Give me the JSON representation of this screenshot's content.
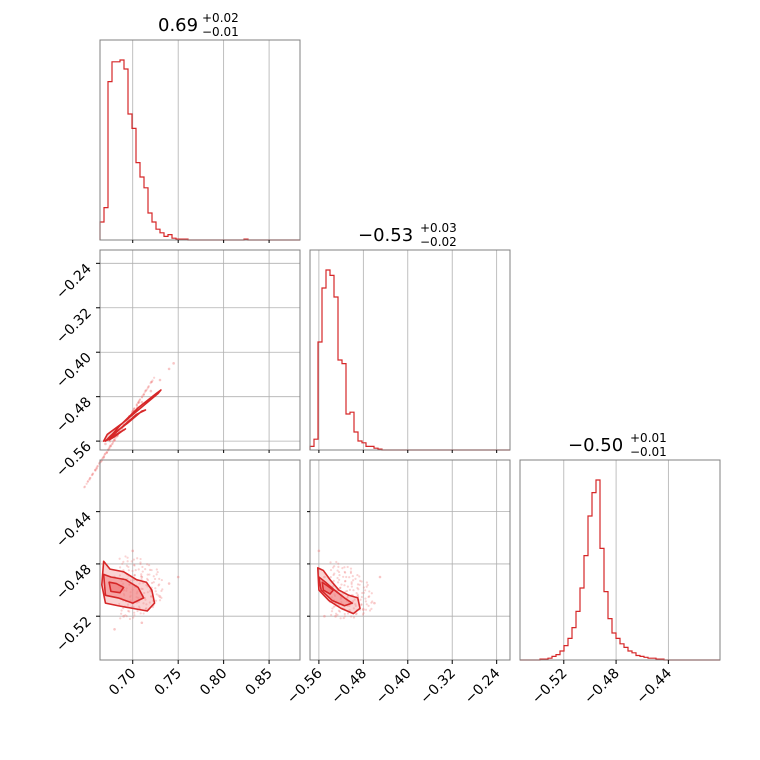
{
  "chart_data": {
    "type": "corner",
    "colors": {
      "line": "#d62728",
      "fill": "#f08080",
      "grid": "#b0b0b0",
      "frame": "#808080"
    },
    "grid": true,
    "params": [
      {
        "title": "0.69",
        "plus": "+0.02",
        "minus": "−0.01",
        "range": [
          0.664,
          0.884
        ],
        "ticks": [
          0.7,
          0.75,
          0.8,
          0.85
        ],
        "tick_labels": [
          "0.70",
          "0.75",
          "0.80",
          "0.85"
        ]
      },
      {
        "title": "−0.53",
        "plus": "+0.03",
        "minus": "−0.02",
        "range": [
          -0.576,
          -0.216
        ],
        "ticks": [
          -0.56,
          -0.48,
          -0.4,
          -0.32,
          -0.24
        ],
        "tick_labels": [
          "−0.56",
          "−0.48",
          "−0.40",
          "−0.32",
          "−0.24"
        ]
      },
      {
        "title": "−0.50",
        "plus": "+0.01",
        "minus": "−0.01",
        "range": [
          -0.5535,
          -0.4005
        ],
        "ticks": [
          -0.52,
          -0.48,
          -0.44
        ],
        "tick_labels": [
          "−0.52",
          "−0.48",
          "−0.44"
        ]
      }
    ],
    "diag_ticks": [
      [
        0.7,
        0.75,
        0.8,
        0.85
      ],
      [
        -0.56,
        -0.48,
        -0.4,
        -0.32,
        -0.24
      ],
      [
        -0.52,
        -0.48,
        -0.44
      ]
    ],
    "row_ticks": [
      {
        "row": 1,
        "ticks": [
          -0.56,
          -0.48,
          -0.4,
          -0.32,
          -0.24
        ],
        "tick_labels": [
          "−0.56",
          "−0.48",
          "−0.40",
          "−0.32",
          "−0.24"
        ]
      },
      {
        "row": 2,
        "ticks": [
          -0.52,
          -0.48,
          -0.44
        ],
        "tick_labels": [
          "−0.52",
          "−0.48",
          "−0.44"
        ]
      }
    ],
    "histograms": [
      {
        "bin_start": 0.664,
        "bin_width": 0.0044,
        "counts": [
          0.1,
          0.18,
          0.88,
          0.99,
          0.99,
          1.0,
          0.95,
          0.7,
          0.62,
          0.43,
          0.35,
          0.29,
          0.15,
          0.1,
          0.06,
          0.04,
          0.02,
          0.03,
          0.01,
          0.005,
          0.005,
          0.005,
          0.0,
          0.0,
          0.0,
          0.0,
          0.0,
          0.0,
          0.0,
          0.0,
          0.0,
          0.0,
          0.0,
          0.0,
          0.0,
          0.0,
          0.005,
          0.0,
          0.0,
          0.0,
          0.0,
          0.0,
          0.0,
          0.0,
          0.0,
          0.0,
          0.0,
          0.0,
          0.0,
          0.0
        ]
      },
      {
        "bin_start": -0.576,
        "bin_width": 0.0072,
        "counts": [
          0.02,
          0.06,
          0.6,
          0.9,
          1.0,
          0.97,
          0.85,
          0.5,
          0.48,
          0.2,
          0.21,
          0.1,
          0.05,
          0.04,
          0.02,
          0.02,
          0.01,
          0.005,
          0.0,
          0.0,
          0.0,
          0.0,
          0.0,
          0.0,
          0.0,
          0.0,
          0.0,
          0.0,
          0.0,
          0.0,
          0.0,
          0.0,
          0.0,
          0.0,
          0.0,
          0.0,
          0.0,
          0.0,
          0.0,
          0.0,
          0.0,
          0.0,
          0.0,
          0.0,
          0.0,
          0.0,
          0.0,
          0.0,
          0.0,
          0.0
        ]
      },
      {
        "bin_start": -0.5535,
        "bin_width": 0.00306,
        "counts": [
          0.0,
          0.0,
          0.0,
          0.0,
          0.0,
          0.005,
          0.005,
          0.01,
          0.02,
          0.03,
          0.05,
          0.08,
          0.12,
          0.18,
          0.27,
          0.4,
          0.58,
          0.8,
          0.93,
          1.0,
          0.62,
          0.38,
          0.23,
          0.15,
          0.12,
          0.09,
          0.07,
          0.05,
          0.04,
          0.025,
          0.02,
          0.015,
          0.01,
          0.01,
          0.005,
          0.005,
          0.0,
          0.0,
          0.0,
          0.0,
          0.0,
          0.0,
          0.0,
          0.0,
          0.0,
          0.0,
          0.0,
          0.0,
          0.0,
          0.0
        ]
      }
    ],
    "joints": [
      {
        "panel": "x1-vs-x0",
        "center": [
          0.685,
          -0.545
        ],
        "slope": 3.2,
        "spread_major": 0.018,
        "spread_minor": 0.008,
        "points": [
          [
            0.68,
            -0.55
          ],
          [
            0.69,
            -0.53
          ],
          [
            0.7,
            -0.51
          ],
          [
            0.71,
            -0.49
          ],
          [
            0.72,
            -0.47
          ],
          [
            0.73,
            -0.45
          ],
          [
            0.74,
            -0.43
          ],
          [
            0.745,
            -0.42
          ],
          [
            0.675,
            -0.56
          ],
          [
            0.67,
            -0.565
          ],
          [
            0.69,
            -0.54
          ],
          [
            0.705,
            -0.5
          ]
        ],
        "contours": [
          [
            [
              0.668,
              -0.56
            ],
            [
              0.672,
              -0.548
            ],
            [
              0.69,
              -0.526
            ],
            [
              0.712,
              -0.496
            ],
            [
              0.728,
              -0.474
            ],
            [
              0.731,
              -0.468
            ],
            [
              0.726,
              -0.474
            ],
            [
              0.706,
              -0.5
            ],
            [
              0.686,
              -0.532
            ],
            [
              0.672,
              -0.558
            ]
          ],
          [
            [
              0.67,
              -0.56
            ],
            [
              0.676,
              -0.55
            ],
            [
              0.694,
              -0.528
            ],
            [
              0.71,
              -0.506
            ],
            [
              0.714,
              -0.504
            ],
            [
              0.704,
              -0.512
            ],
            [
              0.686,
              -0.538
            ],
            [
              0.674,
              -0.556
            ]
          ],
          [
            [
              0.674,
              -0.558
            ],
            [
              0.682,
              -0.548
            ],
            [
              0.692,
              -0.538
            ],
            [
              0.69,
              -0.54
            ],
            [
              0.68,
              -0.552
            ]
          ]
        ]
      },
      {
        "panel": "x2-vs-x0",
        "center": [
          0.685,
          -0.498
        ],
        "points": [
          [
            0.68,
            -0.49
          ],
          [
            0.69,
            -0.5
          ],
          [
            0.7,
            -0.51
          ],
          [
            0.71,
            -0.49
          ],
          [
            0.72,
            -0.5
          ],
          [
            0.73,
            -0.505
          ],
          [
            0.74,
            -0.495
          ],
          [
            0.75,
            -0.49
          ],
          [
            0.7,
            -0.47
          ],
          [
            0.69,
            -0.52
          ],
          [
            0.71,
            -0.525
          ],
          [
            0.68,
            -0.53
          ]
        ],
        "contours": [
          [
            [
              0.668,
              -0.478
            ],
            [
              0.675,
              -0.484
            ],
            [
              0.69,
              -0.486
            ],
            [
              0.704,
              -0.492
            ],
            [
              0.715,
              -0.494
            ],
            [
              0.721,
              -0.5
            ],
            [
              0.724,
              -0.51
            ],
            [
              0.716,
              -0.516
            ],
            [
              0.7,
              -0.514
            ],
            [
              0.684,
              -0.512
            ],
            [
              0.67,
              -0.51
            ],
            [
              0.666,
              -0.496
            ]
          ],
          [
            [
              0.668,
              -0.488
            ],
            [
              0.676,
              -0.49
            ],
            [
              0.692,
              -0.492
            ],
            [
              0.706,
              -0.498
            ],
            [
              0.712,
              -0.506
            ],
            [
              0.7,
              -0.51
            ],
            [
              0.684,
              -0.506
            ],
            [
              0.67,
              -0.504
            ]
          ],
          [
            [
              0.674,
              -0.494
            ],
            [
              0.682,
              -0.495
            ],
            [
              0.69,
              -0.498
            ],
            [
              0.686,
              -0.502
            ],
            [
              0.676,
              -0.501
            ]
          ]
        ]
      },
      {
        "panel": "x2-vs-x1",
        "center": [
          -0.54,
          -0.498
        ],
        "points": [
          [
            -0.55,
            -0.49
          ],
          [
            -0.54,
            -0.5
          ],
          [
            -0.53,
            -0.51
          ],
          [
            -0.52,
            -0.505
          ],
          [
            -0.5,
            -0.51
          ],
          [
            -0.49,
            -0.505
          ],
          [
            -0.48,
            -0.515
          ],
          [
            -0.46,
            -0.51
          ],
          [
            -0.56,
            -0.47
          ],
          [
            -0.55,
            -0.52
          ],
          [
            -0.53,
            -0.52
          ],
          [
            -0.45,
            -0.49
          ]
        ],
        "contours": [
          [
            [
              -0.562,
              -0.483
            ],
            [
              -0.552,
              -0.485
            ],
            [
              -0.54,
              -0.492
            ],
            [
              -0.524,
              -0.5
            ],
            [
              -0.506,
              -0.504
            ],
            [
              -0.49,
              -0.506
            ],
            [
              -0.486,
              -0.514
            ],
            [
              -0.498,
              -0.518
            ],
            [
              -0.52,
              -0.514
            ],
            [
              -0.542,
              -0.508
            ],
            [
              -0.56,
              -0.5
            ]
          ],
          [
            [
              -0.56,
              -0.49
            ],
            [
              -0.548,
              -0.494
            ],
            [
              -0.532,
              -0.5
            ],
            [
              -0.514,
              -0.506
            ],
            [
              -0.5,
              -0.51
            ],
            [
              -0.514,
              -0.512
            ],
            [
              -0.536,
              -0.508
            ],
            [
              -0.556,
              -0.5
            ]
          ],
          [
            [
              -0.554,
              -0.494
            ],
            [
              -0.544,
              -0.497
            ],
            [
              -0.534,
              -0.5
            ],
            [
              -0.54,
              -0.503
            ],
            [
              -0.552,
              -0.5
            ]
          ]
        ]
      }
    ]
  }
}
